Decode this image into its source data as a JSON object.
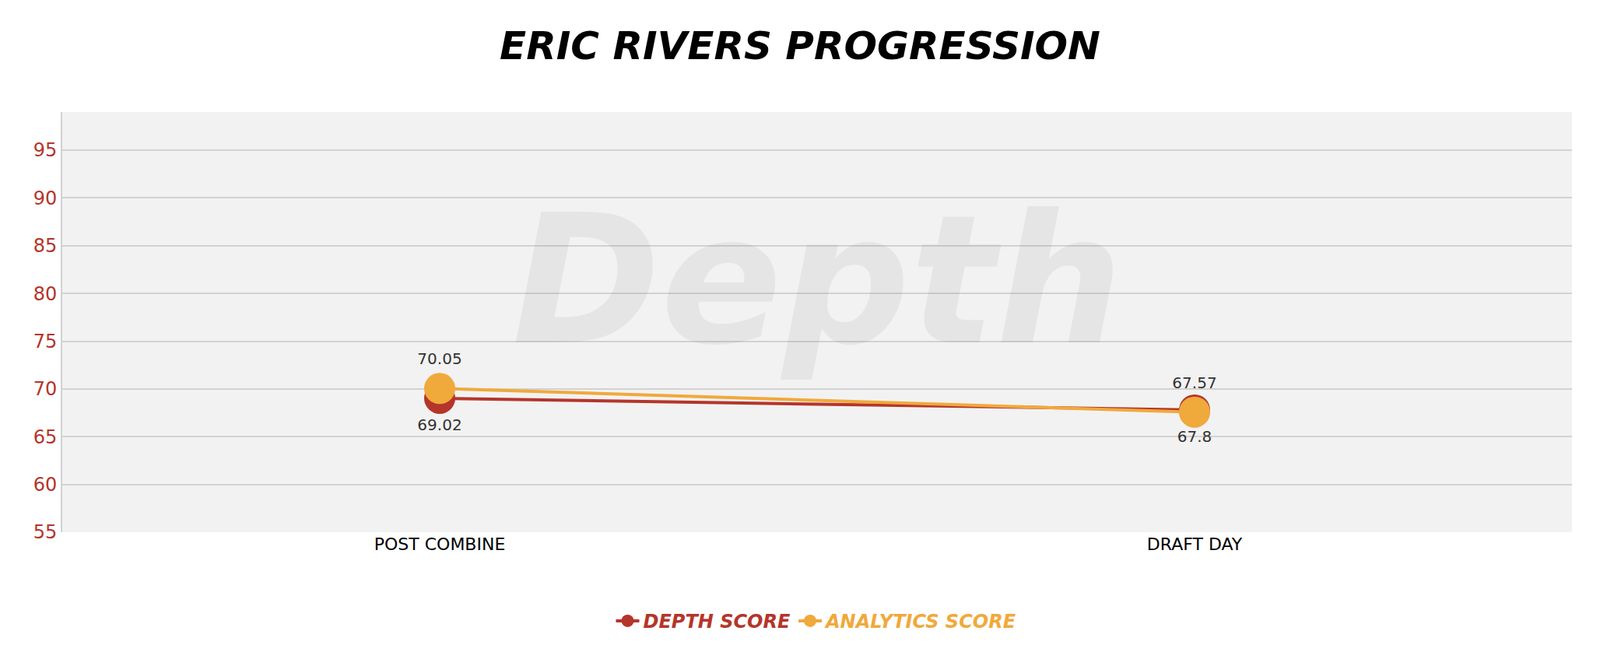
{
  "chart_data": {
    "type": "line",
    "title": "ERIC RIVERS PROGRESSION",
    "categories": [
      "POST COMBINE",
      "DRAFT DAY"
    ],
    "series": [
      {
        "name": "DEPTH SCORE",
        "color": "#b5352b",
        "values": [
          69.02,
          67.8
        ],
        "marker": "circle"
      },
      {
        "name": "ANALYTICS SCORE",
        "color": "#f0a93b",
        "values": [
          70.05,
          67.57
        ],
        "marker": "circle"
      }
    ],
    "ylim": [
      55,
      99
    ],
    "yticks": [
      55,
      60,
      65,
      70,
      75,
      80,
      85,
      90,
      95
    ],
    "grid": true,
    "legend": "bottom",
    "data_labels": true,
    "annotations": [
      {
        "text": "Depth"
      }
    ]
  }
}
